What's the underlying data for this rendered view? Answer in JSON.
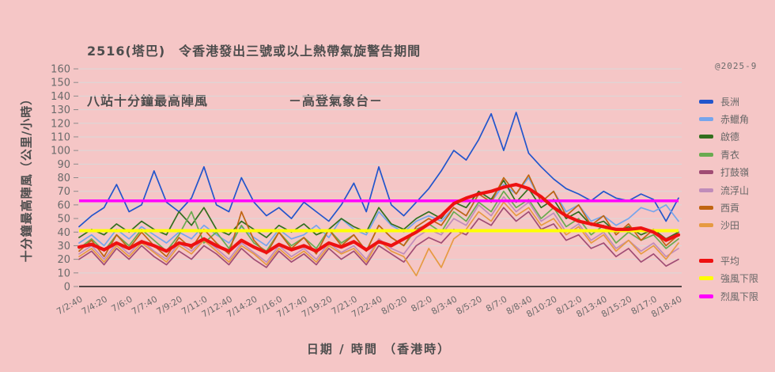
{
  "title": {
    "line1": "2516(塔巴)　令香港發出三號或以上熱帶氣旋警告期間",
    "line2": "八站十分鐘最高陣風　　　　　　－高登氣象台－"
  },
  "watermark": "@2025-9",
  "axes": {
    "y_label": "十分鐘最高陣風（公里/小時）",
    "x_label": "日期 / 時間 （香港時）"
  },
  "colors": {
    "background": "#f5c6c6",
    "grid": "#d9d9d9",
    "axis": "#1a1a1a",
    "text": "#4d4d4d",
    "tick_text": "#6b6b6b"
  },
  "chart_data": {
    "type": "line",
    "title": "2516(塔巴) 令香港發出三號或以上熱帶氣旋警告期間 八站十分鐘最高陣風 －高登氣象台－",
    "xlabel": "日期 / 時間 （香港時）",
    "ylabel": "十分鐘最高陣風（公里/小時）",
    "ylim": [
      0,
      160
    ],
    "y_ticks": [
      0,
      10,
      20,
      30,
      40,
      50,
      60,
      70,
      80,
      90,
      100,
      110,
      120,
      130,
      140,
      150,
      160
    ],
    "grid": "horizontal",
    "legend_position": "right",
    "x_tick_labels": [
      "7/2:40",
      "7/4:20",
      "7/6:0",
      "7/7:40",
      "7/9:20",
      "7/11:0",
      "7/12:40",
      "7/14:20",
      "7/16:0",
      "7/17:40",
      "7/19:20",
      "7/21:0",
      "7/22:40",
      "8/0:20",
      "8/2:0",
      "8/3:40",
      "8/5:20",
      "8/7:0",
      "8/8:40",
      "8/10:20",
      "8/12:0",
      "8/13:40",
      "8/15:20",
      "8/17:0",
      "8/18:40"
    ],
    "sample_interval_minutes": 50,
    "series": [
      {
        "id": "cheung-chau",
        "name": "長洲",
        "color": "#2255cc",
        "width": 1.7,
        "values": [
          44,
          52,
          58,
          75,
          55,
          60,
          85,
          62,
          55,
          65,
          88,
          60,
          55,
          80,
          62,
          52,
          58,
          50,
          62,
          55,
          48,
          60,
          76,
          55,
          88,
          60,
          52,
          62,
          72,
          85,
          100,
          93,
          108,
          127,
          100,
          128,
          98,
          88,
          79,
          72,
          68,
          63,
          70,
          65,
          63,
          68,
          64,
          48,
          65
        ]
      },
      {
        "id": "chek-lap-kok",
        "name": "赤鱲角",
        "color": "#76a5ec",
        "width": 1.7,
        "values": [
          32,
          38,
          30,
          42,
          35,
          44,
          38,
          32,
          40,
          35,
          45,
          38,
          32,
          44,
          36,
          30,
          42,
          35,
          38,
          45,
          36,
          50,
          42,
          38,
          55,
          45,
          40,
          48,
          52,
          48,
          58,
          52,
          68,
          62,
          75,
          68,
          80,
          62,
          70,
          55,
          60,
          48,
          52,
          45,
          50,
          58,
          55,
          60,
          48
        ]
      },
      {
        "id": "kai-tak",
        "name": "啟德",
        "color": "#336f1f",
        "width": 1.7,
        "values": [
          36,
          42,
          38,
          46,
          40,
          48,
          42,
          38,
          55,
          45,
          58,
          42,
          38,
          48,
          42,
          36,
          45,
          40,
          46,
          38,
          42,
          50,
          44,
          40,
          58,
          46,
          42,
          50,
          55,
          50,
          62,
          58,
          70,
          64,
          78,
          62,
          72,
          58,
          64,
          50,
          55,
          45,
          48,
          40,
          44,
          38,
          42,
          35,
          40
        ]
      },
      {
        "id": "tsing-yi",
        "name": "青衣",
        "color": "#6aaa50",
        "width": 1.7,
        "values": [
          28,
          35,
          26,
          38,
          30,
          42,
          34,
          26,
          38,
          55,
          32,
          40,
          28,
          45,
          32,
          26,
          40,
          30,
          36,
          28,
          42,
          32,
          38,
          26,
          45,
          36,
          30,
          42,
          46,
          40,
          55,
          48,
          62,
          55,
          70,
          58,
          64,
          50,
          58,
          44,
          50,
          38,
          45,
          32,
          40,
          34,
          38,
          28,
          35
        ]
      },
      {
        "id": "ta-kwu-ling",
        "name": "打鼓嶺",
        "color": "#a04c74",
        "width": 1.7,
        "values": [
          20,
          26,
          16,
          28,
          20,
          30,
          22,
          16,
          26,
          20,
          30,
          24,
          16,
          28,
          20,
          14,
          26,
          18,
          24,
          16,
          28,
          20,
          26,
          16,
          30,
          24,
          18,
          30,
          36,
          32,
          42,
          38,
          50,
          45,
          58,
          48,
          55,
          42,
          46,
          34,
          38,
          28,
          32,
          22,
          28,
          18,
          24,
          15,
          20
        ]
      },
      {
        "id": "lau-fau-shan",
        "name": "流浮山",
        "color": "#c08cba",
        "width": 1.7,
        "values": [
          24,
          30,
          20,
          32,
          24,
          34,
          26,
          20,
          32,
          26,
          35,
          28,
          20,
          32,
          25,
          18,
          30,
          22,
          28,
          20,
          32,
          25,
          30,
          20,
          35,
          28,
          24,
          36,
          42,
          38,
          50,
          45,
          60,
          52,
          66,
          55,
          62,
          48,
          54,
          40,
          46,
          34,
          40,
          28,
          34,
          26,
          32,
          22,
          28
        ]
      },
      {
        "id": "sai-kung",
        "name": "西貢",
        "color": "#c06512",
        "width": 1.7,
        "values": [
          26,
          34,
          22,
          38,
          28,
          40,
          30,
          22,
          36,
          28,
          42,
          32,
          24,
          55,
          34,
          24,
          40,
          28,
          36,
          24,
          42,
          30,
          38,
          26,
          45,
          36,
          30,
          44,
          50,
          45,
          58,
          52,
          68,
          62,
          80,
          68,
          82,
          62,
          70,
          52,
          60,
          45,
          52,
          38,
          46,
          34,
          42,
          30,
          38
        ]
      },
      {
        "id": "sha-tin",
        "name": "沙田",
        "color": "#e69a42",
        "width": 1.7,
        "values": [
          22,
          28,
          18,
          30,
          22,
          32,
          25,
          18,
          30,
          24,
          34,
          26,
          18,
          30,
          24,
          16,
          28,
          20,
          26,
          18,
          30,
          24,
          28,
          18,
          34,
          26,
          22,
          8,
          28,
          14,
          35,
          42,
          55,
          48,
          62,
          52,
          58,
          45,
          50,
          38,
          44,
          32,
          38,
          26,
          34,
          24,
          30,
          20,
          32
        ]
      },
      {
        "id": "average",
        "name": "平均",
        "color": "#ee1111",
        "width": 4.2,
        "average": true,
        "values": [
          29,
          31,
          27,
          32,
          28,
          33,
          30,
          26,
          32,
          30,
          35,
          30,
          26,
          34,
          29,
          25,
          31,
          27,
          30,
          26,
          32,
          29,
          33,
          27,
          33,
          30,
          35,
          40,
          46,
          52,
          61,
          65,
          68,
          70,
          73,
          75,
          72,
          66,
          58,
          52,
          48,
          46,
          44,
          42,
          42,
          43,
          40,
          34,
          38
        ]
      }
    ],
    "reference_lines": [
      {
        "id": "strong-wind-threshold",
        "name": "強風下限",
        "value": 41,
        "color": "#ffff00",
        "width": 4
      },
      {
        "id": "gale-threshold",
        "name": "烈風下限",
        "value": 63,
        "color": "#ff00ff",
        "width": 3.5
      }
    ]
  }
}
